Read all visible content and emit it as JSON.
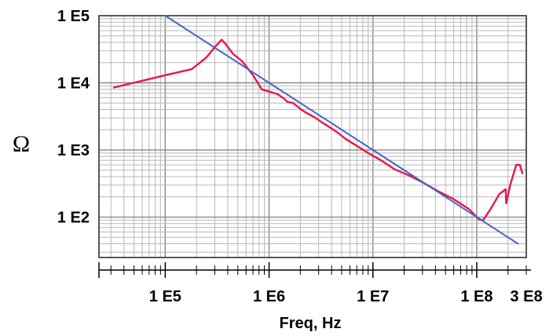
{
  "chart_data": {
    "type": "line",
    "title": "",
    "xlabel": "Freq, Hz",
    "ylabel": "Ω",
    "x_scale": "log",
    "y_scale": "log",
    "xlim": [
      23000,
      300000000
    ],
    "ylim": [
      25,
      100000
    ],
    "grid": true,
    "x_ticks": [
      {
        "value": 100000,
        "label": "1 E5"
      },
      {
        "value": 1000000,
        "label": "1 E6"
      },
      {
        "value": 10000000,
        "label": "1 E7"
      },
      {
        "value": 100000000,
        "label": "1 E8"
      },
      {
        "value": 300000000,
        "label": "3 E8"
      }
    ],
    "y_ticks": [
      {
        "value": 100,
        "label": "1 E2"
      },
      {
        "value": 1000,
        "label": "1 E3"
      },
      {
        "value": 10000,
        "label": "1 E4"
      },
      {
        "value": 100000,
        "label": "1 E5"
      }
    ],
    "series": [
      {
        "color": "#e8174a",
        "x": [
          32000,
          100000,
          180000,
          250000,
          300000,
          350000,
          380000,
          450000,
          550000,
          700000,
          850000,
          950000,
          1200000,
          1400000,
          1500000,
          1700000,
          2000000,
          2200000,
          2800000,
          3200000,
          3800000,
          4500000,
          5500000,
          7000000,
          9000000,
          12000000,
          16000000,
          22000000,
          30000000,
          42000000,
          60000000,
          85000000,
          100000000,
          105000000,
          115000000,
          135000000,
          165000000,
          190000000,
          192000000,
          210000000,
          240000000,
          260000000,
          275000000
        ],
        "y": [
          8500,
          13000,
          16000,
          24000,
          34000,
          44000,
          38000,
          27000,
          21000,
          13000,
          8000,
          7600,
          6800,
          5800,
          5200,
          5000,
          4100,
          3700,
          3000,
          2600,
          2200,
          1850,
          1450,
          1150,
          900,
          700,
          520,
          420,
          330,
          245,
          185,
          130,
          100,
          92,
          90,
          130,
          220,
          260,
          160,
          300,
          600,
          600,
          450
        ]
      },
      {
        "color": "#4a62c8",
        "x": [
          100000,
          250000000
        ],
        "y": [
          100000,
          40
        ]
      }
    ]
  }
}
